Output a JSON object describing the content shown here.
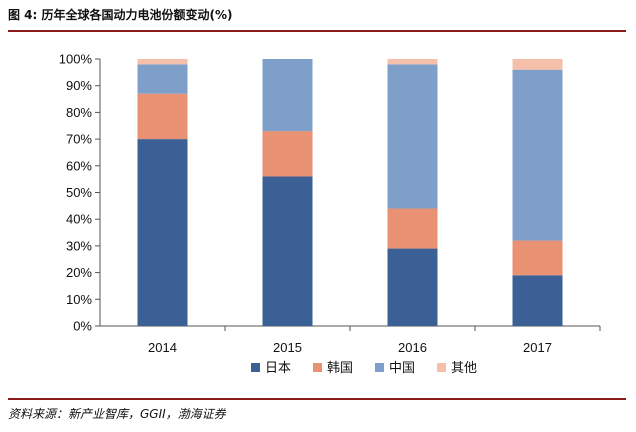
{
  "title": "图 4:  历年全球各国动力电池份额变动(%)",
  "source": "资料来源：新产业智库，GGII，渤海证券",
  "colors": {
    "rule": "#8b1a1a",
    "series": [
      "#3a6096",
      "#e99273",
      "#7f9fcb",
      "#f4c0aa"
    ]
  },
  "chart_data": {
    "type": "bar",
    "stacked": true,
    "categories": [
      "2014",
      "2015",
      "2016",
      "2017"
    ],
    "series": [
      {
        "name": "日本",
        "values": [
          70,
          56,
          29,
          19
        ]
      },
      {
        "name": "韩国",
        "values": [
          17,
          17,
          15,
          13
        ]
      },
      {
        "name": "中国",
        "values": [
          11,
          27,
          54,
          64
        ]
      },
      {
        "name": "其他",
        "values": [
          2,
          0,
          2,
          4
        ]
      }
    ],
    "ylim": [
      0,
      100
    ],
    "yticks": [
      "0%",
      "10%",
      "20%",
      "30%",
      "40%",
      "50%",
      "60%",
      "70%",
      "80%",
      "90%",
      "100%"
    ],
    "grid": false,
    "legend": "bottom-center"
  }
}
